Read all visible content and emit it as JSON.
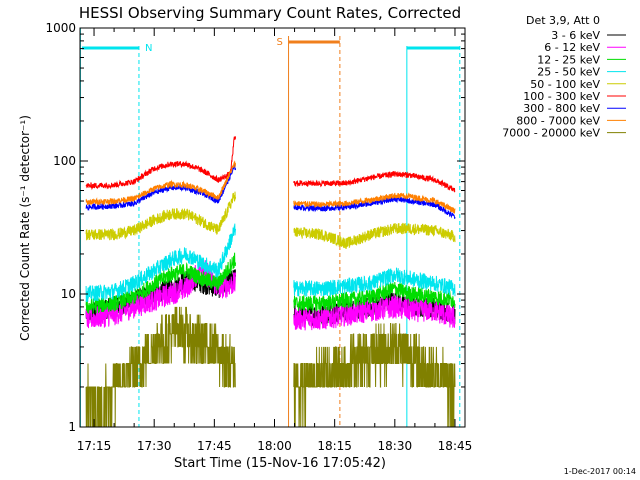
{
  "chart_data": {
    "type": "line",
    "title": "HESSI Observing Summary Count Rates, Corrected",
    "xlabel": "Start Time (15-Nov-16 17:05:42)",
    "ylabel": "Corrected Count Rate (s⁻¹ detector⁻¹)",
    "yscale": "log",
    "xlim_minutes": [
      1045.7,
      1128.0
    ],
    "ylim": [
      1,
      1000
    ],
    "x_ticks": [
      {
        "minute": 1035,
        "label": "17:15"
      },
      {
        "minute": 1050,
        "label": "17:30"
      },
      {
        "minute": 1065,
        "label": "17:45"
      },
      {
        "minute": 1080,
        "label": "18:00"
      },
      {
        "minute": 1095,
        "label": "18:15"
      },
      {
        "minute": 1110,
        "label": "18:30"
      },
      {
        "minute": 1125,
        "label": "18:45"
      }
    ],
    "y_ticks": [
      {
        "value": 1,
        "label": "1"
      },
      {
        "value": 10,
        "label": "10"
      },
      {
        "value": 100,
        "label": "100"
      },
      {
        "value": 1000,
        "label": "1000"
      }
    ],
    "legend_title": "Det 3,9, Att 0",
    "legend_position": "right-outside",
    "flags": {
      "night": {
        "label": "N",
        "color": "#00e5ee"
      },
      "saa": {
        "label": "S",
        "color": "#f07f1c"
      }
    },
    "series": [
      {
        "name": "3 - 6 keV",
        "color": "#000000",
        "points": [
          [
            1033,
            7
          ],
          [
            1040,
            8
          ],
          [
            1045,
            9
          ],
          [
            1050,
            10
          ],
          [
            1054,
            11
          ],
          [
            1058,
            13
          ],
          [
            1062,
            12
          ],
          [
            1066,
            11
          ],
          [
            1070,
            13
          ],
          [
            1085,
            7
          ],
          [
            1092,
            7
          ],
          [
            1098,
            7.5
          ],
          [
            1104,
            8
          ],
          [
            1110,
            9
          ],
          [
            1114,
            8
          ],
          [
            1120,
            8
          ],
          [
            1125,
            7
          ]
        ]
      },
      {
        "name": "6 - 12 keV",
        "color": "#ff00ff",
        "points": [
          [
            1033,
            6.5
          ],
          [
            1040,
            7
          ],
          [
            1045,
            8
          ],
          [
            1050,
            9
          ],
          [
            1054,
            10
          ],
          [
            1058,
            11
          ],
          [
            1062,
            16
          ],
          [
            1066,
            11
          ],
          [
            1070,
            12
          ],
          [
            1085,
            6.5
          ],
          [
            1092,
            6.5
          ],
          [
            1098,
            7
          ],
          [
            1104,
            7.5
          ],
          [
            1110,
            8
          ],
          [
            1114,
            7.5
          ],
          [
            1120,
            7.5
          ],
          [
            1125,
            6.5
          ]
        ]
      },
      {
        "name": "12 - 25 keV",
        "color": "#00dd00",
        "points": [
          [
            1033,
            8
          ],
          [
            1040,
            8.5
          ],
          [
            1045,
            9.5
          ],
          [
            1050,
            12
          ],
          [
            1054,
            14
          ],
          [
            1058,
            15
          ],
          [
            1062,
            13
          ],
          [
            1066,
            12
          ],
          [
            1070,
            18
          ],
          [
            1085,
            8.5
          ],
          [
            1092,
            8.5
          ],
          [
            1098,
            9
          ],
          [
            1104,
            9.5
          ],
          [
            1110,
            11
          ],
          [
            1114,
            10
          ],
          [
            1120,
            9.5
          ],
          [
            1125,
            9
          ]
        ]
      },
      {
        "name": "25 - 50 keV",
        "color": "#00e5ee",
        "points": [
          [
            1033,
            10
          ],
          [
            1040,
            10.5
          ],
          [
            1045,
            12
          ],
          [
            1050,
            15
          ],
          [
            1054,
            18
          ],
          [
            1058,
            20
          ],
          [
            1062,
            17
          ],
          [
            1066,
            15
          ],
          [
            1070,
            30
          ],
          [
            1085,
            11
          ],
          [
            1092,
            11
          ],
          [
            1098,
            11.5
          ],
          [
            1104,
            12
          ],
          [
            1110,
            14
          ],
          [
            1114,
            13
          ],
          [
            1120,
            12
          ],
          [
            1125,
            11
          ]
        ]
      },
      {
        "name": "50 - 100 keV",
        "color": "#cccc00",
        "points": [
          [
            1033,
            28
          ],
          [
            1040,
            28
          ],
          [
            1045,
            30
          ],
          [
            1050,
            36
          ],
          [
            1054,
            40
          ],
          [
            1058,
            40
          ],
          [
            1062,
            35
          ],
          [
            1066,
            30
          ],
          [
            1070,
            55
          ],
          [
            1085,
            29
          ],
          [
            1092,
            28
          ],
          [
            1098,
            24
          ],
          [
            1104,
            28
          ],
          [
            1110,
            31
          ],
          [
            1114,
            31
          ],
          [
            1120,
            30
          ],
          [
            1125,
            27
          ]
        ]
      },
      {
        "name": "100 - 300 keV",
        "color": "#ff0000",
        "points": [
          [
            1033,
            65
          ],
          [
            1040,
            66
          ],
          [
            1045,
            70
          ],
          [
            1050,
            88
          ],
          [
            1054,
            95
          ],
          [
            1058,
            95
          ],
          [
            1062,
            85
          ],
          [
            1066,
            72
          ],
          [
            1069,
            80
          ],
          [
            1070,
            150
          ],
          [
            1085,
            68
          ],
          [
            1092,
            68
          ],
          [
            1098,
            68
          ],
          [
            1104,
            75
          ],
          [
            1110,
            80
          ],
          [
            1114,
            78
          ],
          [
            1120,
            72
          ],
          [
            1125,
            60
          ]
        ]
      },
      {
        "name": "300 - 800 keV",
        "color": "#0000ff",
        "points": [
          [
            1033,
            45
          ],
          [
            1040,
            46
          ],
          [
            1045,
            48
          ],
          [
            1050,
            58
          ],
          [
            1054,
            63
          ],
          [
            1058,
            63
          ],
          [
            1062,
            57
          ],
          [
            1066,
            50
          ],
          [
            1070,
            90
          ],
          [
            1085,
            45
          ],
          [
            1092,
            44
          ],
          [
            1098,
            45
          ],
          [
            1104,
            48
          ],
          [
            1110,
            52
          ],
          [
            1114,
            50
          ],
          [
            1120,
            47
          ],
          [
            1125,
            38
          ]
        ]
      },
      {
        "name": "800 - 7000 keV",
        "color": "#ff8000",
        "points": [
          [
            1033,
            49
          ],
          [
            1040,
            50
          ],
          [
            1045,
            52
          ],
          [
            1050,
            62
          ],
          [
            1054,
            67
          ],
          [
            1058,
            66
          ],
          [
            1062,
            60
          ],
          [
            1066,
            53
          ],
          [
            1070,
            95
          ],
          [
            1085,
            48
          ],
          [
            1092,
            47
          ],
          [
            1098,
            48
          ],
          [
            1104,
            51
          ],
          [
            1110,
            55
          ],
          [
            1114,
            54
          ],
          [
            1120,
            50
          ],
          [
            1125,
            42
          ]
        ]
      },
      {
        "name": "7000 - 20000 keV",
        "color": "#808000",
        "points": [
          [
            1033,
            1.7
          ],
          [
            1036,
            1.3
          ],
          [
            1040,
            2
          ],
          [
            1044,
            2.5
          ],
          [
            1048,
            3.5
          ],
          [
            1052,
            4.5
          ],
          [
            1056,
            5.5
          ],
          [
            1060,
            4.5
          ],
          [
            1064,
            4
          ],
          [
            1068,
            3
          ],
          [
            1070,
            3
          ],
          [
            1085,
            2
          ],
          [
            1092,
            2.5
          ],
          [
            1098,
            3
          ],
          [
            1104,
            3.5
          ],
          [
            1110,
            4
          ],
          [
            1114,
            3.5
          ],
          [
            1120,
            2.5
          ],
          [
            1125,
            2
          ]
        ]
      }
    ]
  },
  "timestamp": "1-Dec-2017 00:14"
}
